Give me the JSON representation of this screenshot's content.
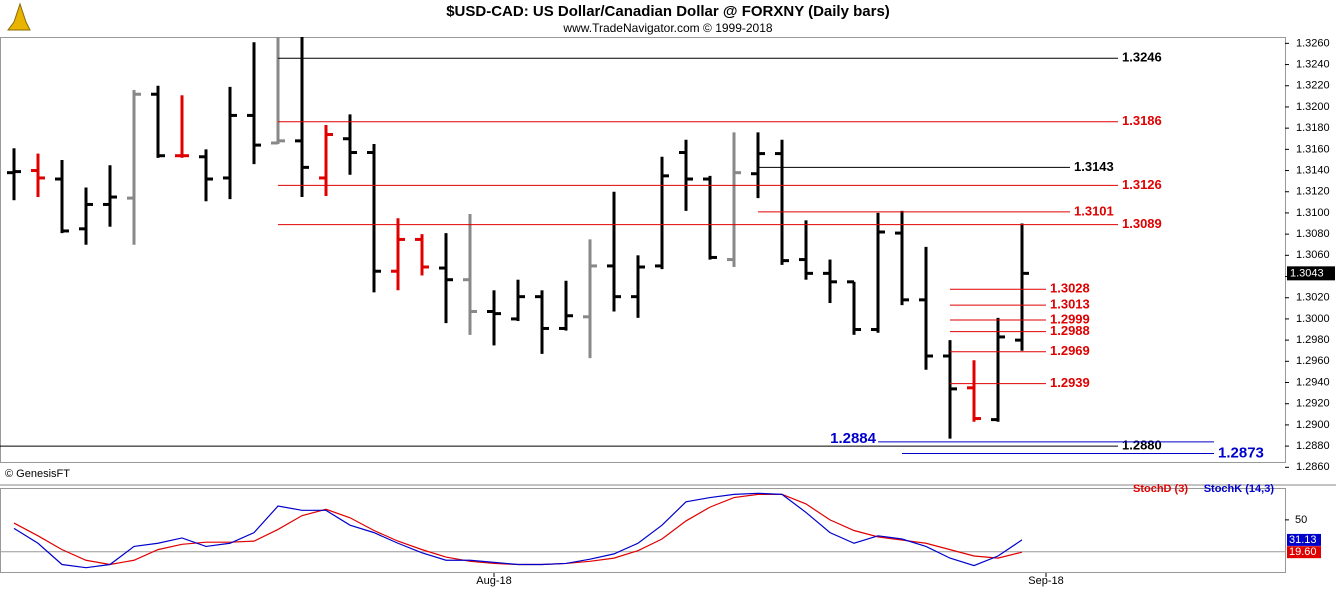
{
  "chart_data": {
    "type": "ohlc",
    "title": "$USD-CAD:  US Dollar/Canadian Dollar @ FORXNY  (Daily bars)",
    "subtitle": "www.TradeNavigator.com © 1999-2018",
    "credit": "© GenesisFT",
    "bars": {
      "open": [
        1.3138,
        1.314,
        1.3132,
        1.3085,
        1.3108,
        1.3114,
        1.3212,
        1.3154,
        1.3153,
        1.3133,
        1.3192,
        1.3166,
        1.3168,
        1.3133,
        1.317,
        1.3157,
        1.3045,
        1.3075,
        1.3048,
        1.3037,
        1.3007,
        1.3,
        1.3021,
        1.2991,
        1.3002,
        1.305,
        1.3021,
        1.305,
        1.3157,
        1.3132,
        1.3056,
        1.3137,
        1.3156,
        1.3056,
        1.3043,
        1.3035,
        1.299,
        1.3081,
        1.3018,
        1.2965,
        1.2935,
        1.2905,
        1.298
      ],
      "high": [
        1.3161,
        1.3156,
        1.315,
        1.3124,
        1.3145,
        1.3216,
        1.322,
        1.3211,
        1.316,
        1.3219,
        1.3261,
        1.3266,
        1.3266,
        1.3183,
        1.3193,
        1.3165,
        1.3095,
        1.308,
        1.3081,
        1.3099,
        1.3027,
        1.3037,
        1.3027,
        1.3036,
        1.3075,
        1.312,
        1.306,
        1.3153,
        1.3169,
        1.3135,
        1.3176,
        1.3176,
        1.3169,
        1.3093,
        1.3056,
        1.3035,
        1.31,
        1.3102,
        1.3068,
        1.298,
        1.2961,
        1.3001,
        1.309
      ],
      "low": [
        1.3112,
        1.3115,
        1.3081,
        1.307,
        1.3087,
        1.307,
        1.3152,
        1.3152,
        1.3111,
        1.3113,
        1.3146,
        1.3165,
        1.3115,
        1.3116,
        1.3136,
        1.3025,
        1.3027,
        1.3041,
        1.2996,
        1.2985,
        1.2975,
        1.2998,
        1.2967,
        1.2989,
        1.2963,
        1.3007,
        1.3001,
        1.3047,
        1.3102,
        1.3056,
        1.3049,
        1.3114,
        1.3051,
        1.3037,
        1.3015,
        1.2985,
        1.2987,
        1.3013,
        1.2952,
        1.2887,
        1.2903,
        1.2903,
        1.297
      ],
      "close": [
        1.3139,
        1.3133,
        1.3083,
        1.3108,
        1.3115,
        1.3212,
        1.3154,
        1.3154,
        1.3132,
        1.3192,
        1.3164,
        1.3168,
        1.3143,
        1.3174,
        1.3157,
        1.3045,
        1.3075,
        1.3049,
        1.3037,
        1.3007,
        1.3005,
        1.3021,
        1.2991,
        1.3003,
        1.305,
        1.3021,
        1.3049,
        1.3135,
        1.3132,
        1.3058,
        1.3138,
        1.3156,
        1.3055,
        1.3043,
        1.3035,
        1.299,
        1.3082,
        1.3018,
        1.2965,
        1.2934,
        1.2906,
        1.2983,
        1.3043
      ],
      "colors": [
        "#000000",
        "#e00000",
        "#000000",
        "#000000",
        "#000000",
        "#888888",
        "#000000",
        "#e00000",
        "#000000",
        "#000000",
        "#000000",
        "#888888",
        "#000000",
        "#e00000",
        "#000000",
        "#000000",
        "#e00000",
        "#e00000",
        "#000000",
        "#888888",
        "#000000",
        "#000000",
        "#000000",
        "#000000",
        "#888888",
        "#000000",
        "#000000",
        "#000000",
        "#000000",
        "#000000",
        "#888888",
        "#000000",
        "#000000",
        "#000000",
        "#000000",
        "#000000",
        "#000000",
        "#000000",
        "#000000",
        "#000000",
        "#e00000",
        "#000000",
        "#000000"
      ]
    },
    "ylim": [
      1.2865,
      1.3266
    ],
    "yticks": [
      {
        "value": 1.326,
        "label": "1.3260"
      },
      {
        "value": 1.324,
        "label": "1.3240"
      },
      {
        "value": 1.322,
        "label": "1.3220"
      },
      {
        "value": 1.32,
        "label": "1.3200"
      },
      {
        "value": 1.318,
        "label": "1.3180"
      },
      {
        "value": 1.316,
        "label": "1.3160"
      },
      {
        "value": 1.314,
        "label": "1.3140"
      },
      {
        "value": 1.312,
        "label": "1.3120"
      },
      {
        "value": 1.31,
        "label": "1.3100"
      },
      {
        "value": 1.308,
        "label": "1.3080"
      },
      {
        "value": 1.306,
        "label": "1.3060"
      },
      {
        "value": 1.304,
        "label": "1.3040"
      },
      {
        "value": 1.302,
        "label": "1.3020"
      },
      {
        "value": 1.3,
        "label": "1.3000"
      },
      {
        "value": 1.298,
        "label": "1.2980"
      },
      {
        "value": 1.296,
        "label": "1.2960"
      },
      {
        "value": 1.294,
        "label": "1.2940"
      },
      {
        "value": 1.292,
        "label": "1.2920"
      },
      {
        "value": 1.29,
        "label": "1.2900"
      },
      {
        "value": 1.288,
        "label": "1.2880"
      },
      {
        "value": 1.286,
        "label": "1.2860"
      }
    ],
    "levels": [
      {
        "value": 1.3246,
        "label": "1.3246",
        "color": "#000000",
        "start": 11,
        "end": 46
      },
      {
        "value": 1.3186,
        "label": "1.3186",
        "color": "#e00000",
        "start": 11,
        "end": 46
      },
      {
        "value": 1.3143,
        "label": "1.3143",
        "color": "#000000",
        "start": 31,
        "end": 44
      },
      {
        "value": 1.3126,
        "label": "1.3126",
        "color": "#e00000",
        "start": 11,
        "end": 46
      },
      {
        "value": 1.3101,
        "label": "1.3101",
        "color": "#e00000",
        "start": 31,
        "end": 44
      },
      {
        "value": 1.3089,
        "label": "1.3089",
        "color": "#e00000",
        "start": 11,
        "end": 46
      },
      {
        "value": 1.3028,
        "label": "1.3028",
        "color": "#e00000",
        "start": 39,
        "end": 43
      },
      {
        "value": 1.3013,
        "label": "1.3013",
        "color": "#e00000",
        "start": 39,
        "end": 43
      },
      {
        "value": 1.2999,
        "label": "1.2999",
        "color": "#e00000",
        "start": 39,
        "end": 43
      },
      {
        "value": 1.2988,
        "label": "1.2988",
        "color": "#e00000",
        "start": 39,
        "end": 43
      },
      {
        "value": 1.2969,
        "label": "1.2969",
        "color": "#e00000",
        "start": 39,
        "end": 43
      },
      {
        "value": 1.2939,
        "label": "1.2939",
        "color": "#e00000",
        "start": 39,
        "end": 43
      },
      {
        "value": 1.288,
        "label": "1.2880",
        "color": "#000000",
        "start": 0,
        "end": 46
      },
      {
        "value": 1.2884,
        "label": "1.2884",
        "color": "#0000cc",
        "start": 36,
        "end": 50,
        "label_side": "left",
        "emphasis": true
      },
      {
        "value": 1.2873,
        "label": "1.2873",
        "color": "#0000cc",
        "start": 37,
        "end": 50,
        "emphasis": true
      }
    ],
    "x_labels": [
      {
        "label": "Aug-18",
        "at": 20
      },
      {
        "label": "Sep-18",
        "at": 43
      }
    ],
    "stochastic": {
      "ylim": [
        0,
        80
      ],
      "yticks": [
        50
      ],
      "reference": 20,
      "series": [
        {
          "name": "StochD (3)",
          "color": "#e00000",
          "values": [
            47,
            35,
            22,
            12,
            8,
            12,
            22,
            27,
            29,
            29,
            30,
            41,
            54,
            60,
            52,
            40,
            30,
            22,
            15,
            11,
            9,
            8,
            8,
            9,
            11,
            14,
            21,
            32,
            49,
            62,
            71,
            74,
            74,
            65,
            50,
            40,
            34,
            31,
            28,
            22,
            16,
            14,
            19.6
          ],
          "last_value_label": "19.60"
        },
        {
          "name": "StochK (14,3)",
          "color": "#0000cc",
          "values": [
            42,
            28,
            8,
            5,
            8,
            25,
            28,
            33,
            25,
            28,
            38,
            63,
            59,
            59,
            45,
            38,
            28,
            19,
            12,
            12,
            10,
            8,
            8,
            9,
            13,
            18,
            28,
            45,
            67,
            71,
            74,
            75,
            74,
            57,
            38,
            28,
            35,
            32,
            25,
            14,
            7,
            16,
            31.13
          ],
          "last_value_label": "31.13"
        }
      ]
    }
  }
}
